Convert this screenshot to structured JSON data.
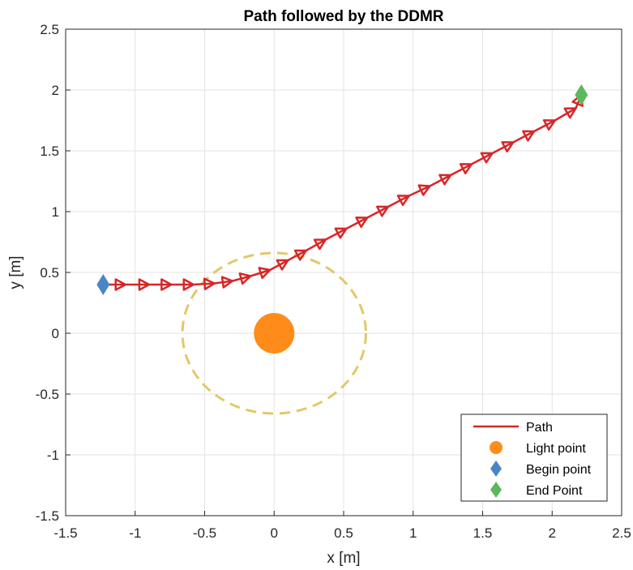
{
  "chart_data": {
    "type": "line",
    "title": "Path followed by the DDMR",
    "xlabel": "x [m]",
    "ylabel": "y [m]",
    "xlim": [
      -1.5,
      2.5
    ],
    "ylim": [
      -1.5,
      2.5
    ],
    "xticks": [
      -1.5,
      -1,
      -0.5,
      0,
      0.5,
      1,
      1.5,
      2,
      2.5
    ],
    "yticks": [
      -1.5,
      -1,
      -0.5,
      0,
      0.5,
      1,
      1.5,
      2,
      2.5
    ],
    "xtick_labels": [
      "-1.5",
      "-1",
      "-0.5",
      "0",
      "0.5",
      "1",
      "1.5",
      "2",
      "2.5"
    ],
    "ytick_labels": [
      "-1.5",
      "-1",
      "-0.5",
      "0",
      "0.5",
      "1",
      "1.5",
      "2",
      "2.5"
    ],
    "grid": true,
    "legend_position": "bottom-right",
    "series": [
      {
        "name": "Path",
        "kind": "line-with-arrows",
        "color": "#d62728",
        "x": [
          -1.23,
          -1.07,
          -0.9,
          -0.74,
          -0.58,
          -0.43,
          -0.3,
          -0.17,
          -0.03,
          0.1,
          0.23,
          0.37,
          0.52,
          0.67,
          0.82,
          0.97,
          1.12,
          1.27,
          1.42,
          1.57,
          1.72,
          1.87,
          2.02,
          2.17,
          2.21
        ],
        "y": [
          0.4,
          0.4,
          0.4,
          0.4,
          0.4,
          0.41,
          0.43,
          0.47,
          0.52,
          0.6,
          0.68,
          0.77,
          0.86,
          0.95,
          1.04,
          1.13,
          1.21,
          1.3,
          1.39,
          1.48,
          1.57,
          1.66,
          1.75,
          1.85,
          1.96
        ]
      },
      {
        "name": "Light point",
        "kind": "marker-circle",
        "color": "#ff8c1a",
        "x": [
          0
        ],
        "y": [
          0
        ]
      },
      {
        "name": "Begin point",
        "kind": "marker-diamond",
        "color": "#4a86c5",
        "x": [
          -1.23
        ],
        "y": [
          0.4
        ]
      },
      {
        "name": "End Point",
        "kind": "marker-diamond",
        "color": "#5cb85c",
        "x": [
          2.21
        ],
        "y": [
          1.96
        ]
      }
    ],
    "circle": {
      "cx": 0,
      "cy": 0,
      "r": 0.66,
      "style": "dashed",
      "color": "#e0c96a"
    }
  }
}
